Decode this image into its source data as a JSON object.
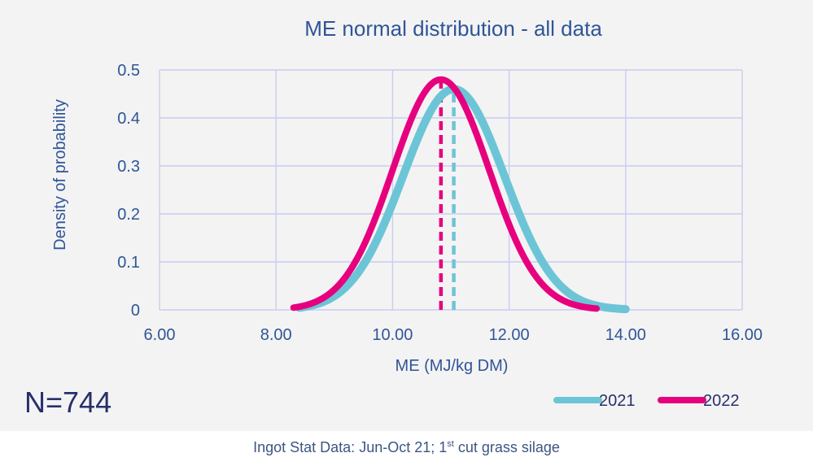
{
  "chart_data": {
    "type": "line",
    "title": "ME normal distribution - all data",
    "xlabel": "ME (MJ/kg DM)",
    "ylabel": "Density of probability",
    "xlim": [
      6,
      16
    ],
    "ylim": [
      0,
      0.5
    ],
    "x_ticks": [
      "6.00",
      "8.00",
      "10.00",
      "12.00",
      "14.00",
      "16.00"
    ],
    "y_ticks": [
      "0",
      "0.1",
      "0.2",
      "0.3",
      "0.4",
      "0.5"
    ],
    "grid": true,
    "legend_position": "bottom-right",
    "series": [
      {
        "name": "2021",
        "color": "#6cc5d6",
        "mean": 11.05,
        "sd": 0.87,
        "x_range": [
          8.4,
          14.0
        ],
        "peak": 0.46
      },
      {
        "name": "2022",
        "color": "#e6007e",
        "mean": 10.83,
        "sd": 0.83,
        "x_range": [
          8.3,
          13.5
        ],
        "peak": 0.48
      }
    ],
    "annotations": [
      {
        "type": "dashed-vline",
        "series": "2021",
        "x": 11.05
      },
      {
        "type": "dashed-vline",
        "series": "2022",
        "x": 10.83
      }
    ]
  },
  "sample_label": "N=744",
  "footnote": {
    "before": "Ingot Stat Data: Jun-Oct 21; 1",
    "sup": "st",
    "after": " cut grass silage"
  }
}
